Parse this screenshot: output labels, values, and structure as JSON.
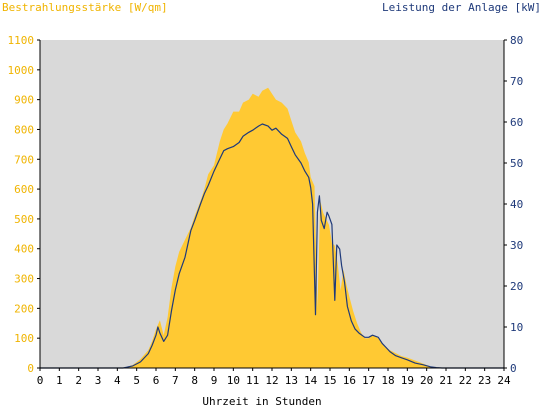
{
  "chart_data": {
    "type": "area",
    "ylabel_left": "Bestrahlungsstärke [W/qm]",
    "ylabel_right": "Leistung der Anlage [kW]",
    "xlabel": "Uhrzeit in Stunden",
    "x_range": [
      0,
      24
    ],
    "x_ticks": [
      "0",
      "1",
      "2",
      "3",
      "4",
      "5",
      "6",
      "7",
      "8",
      "9",
      "10",
      "11",
      "12",
      "13",
      "14",
      "15",
      "16",
      "17",
      "18",
      "19",
      "20",
      "21",
      "22",
      "23",
      "24"
    ],
    "y_left_range": [
      0,
      1100
    ],
    "y_left_ticks": [
      "0",
      "100",
      "200",
      "300",
      "400",
      "500",
      "600",
      "700",
      "800",
      "900",
      "1000",
      "1100"
    ],
    "y_right_range": [
      0,
      80
    ],
    "y_right_ticks": [
      "0",
      "10",
      "20",
      "30",
      "40",
      "50",
      "60",
      "70",
      "80"
    ],
    "grid": false,
    "colors": {
      "plot_background": "#d9d9d9",
      "irradiance_fill": "#ffc933",
      "power_line": "#1f3a7a",
      "left_axis_text": "#f0b400",
      "right_axis_text": "#1f3a7a",
      "x_axis_text": "#000000"
    },
    "series": [
      {
        "axis": "left",
        "style": "area",
        "x": [
          0,
          4.3,
          4.8,
          5.2,
          5.6,
          5.8,
          6.0,
          6.2,
          6.4,
          6.6,
          6.8,
          7.0,
          7.2,
          7.5,
          7.8,
          8.0,
          8.3,
          8.5,
          8.7,
          9.0,
          9.3,
          9.5,
          9.7,
          10.0,
          10.3,
          10.5,
          10.8,
          11.0,
          11.3,
          11.5,
          11.8,
          12.0,
          12.2,
          12.5,
          12.8,
          13.0,
          13.2,
          13.5,
          13.7,
          13.9,
          14.0,
          14.2,
          14.35,
          14.5,
          14.65,
          14.8,
          14.95,
          15.1,
          15.25,
          15.4,
          15.55,
          15.7,
          15.85,
          16.0,
          16.2,
          16.4,
          16.6,
          16.8,
          17.0,
          17.2,
          17.5,
          17.7,
          17.9,
          18.1,
          18.4,
          18.7,
          19.0,
          19.4,
          19.8,
          20.2,
          20.5,
          20.8,
          21.0,
          24
        ],
        "values": [
          0,
          0,
          10,
          30,
          60,
          90,
          130,
          160,
          110,
          170,
          270,
          340,
          390,
          430,
          470,
          510,
          560,
          600,
          650,
          680,
          760,
          800,
          820,
          860,
          860,
          890,
          900,
          920,
          910,
          930,
          940,
          920,
          900,
          890,
          870,
          830,
          790,
          760,
          720,
          690,
          640,
          610,
          200,
          560,
          520,
          500,
          480,
          420,
          410,
          350,
          260,
          330,
          280,
          240,
          190,
          150,
          120,
          100,
          100,
          110,
          100,
          80,
          70,
          60,
          50,
          40,
          35,
          25,
          15,
          5,
          2,
          0,
          0,
          0
        ]
      },
      {
        "axis": "right",
        "style": "line",
        "x": [
          0,
          4.3,
          4.8,
          5.2,
          5.6,
          5.8,
          6.0,
          6.1,
          6.2,
          6.4,
          6.6,
          6.8,
          7.0,
          7.2,
          7.5,
          7.8,
          8.0,
          8.3,
          8.5,
          8.7,
          9.0,
          9.3,
          9.5,
          9.7,
          10.0,
          10.3,
          10.5,
          10.8,
          11.0,
          11.3,
          11.5,
          11.8,
          12.0,
          12.2,
          12.5,
          12.8,
          13.0,
          13.2,
          13.5,
          13.7,
          13.9,
          14.0,
          14.1,
          14.25,
          14.35,
          14.45,
          14.55,
          14.7,
          14.85,
          14.95,
          15.1,
          15.25,
          15.35,
          15.5,
          15.6,
          15.75,
          15.9,
          16.1,
          16.3,
          16.5,
          16.8,
          17.0,
          17.2,
          17.5,
          17.7,
          17.9,
          18.1,
          18.4,
          18.7,
          19.0,
          19.4,
          19.8,
          20.2,
          20.5,
          20.8,
          21.0,
          24
        ],
        "values": [
          0,
          0,
          0.5,
          1.5,
          3.5,
          5.5,
          8.0,
          10.0,
          8.5,
          6.5,
          8.0,
          14.0,
          19.0,
          23.0,
          27.0,
          33.5,
          36.0,
          40.0,
          42.5,
          44.5,
          48.0,
          51.0,
          53.0,
          53.5,
          54.0,
          55.0,
          56.5,
          57.5,
          58.0,
          59.0,
          59.5,
          59.0,
          58.0,
          58.5,
          57.0,
          56.0,
          54.0,
          52.0,
          50.0,
          48.0,
          46.5,
          44.0,
          40.0,
          13.0,
          38.0,
          42.0,
          36.0,
          34.0,
          38.0,
          37.0,
          35.0,
          16.5,
          30.0,
          29.0,
          25.0,
          21.0,
          15.0,
          11.5,
          9.5,
          8.5,
          7.5,
          7.5,
          8.0,
          7.5,
          6.0,
          5.0,
          4.0,
          3.0,
          2.5,
          2.0,
          1.2,
          0.8,
          0.3,
          0.1,
          0,
          0,
          0
        ]
      }
    ]
  }
}
